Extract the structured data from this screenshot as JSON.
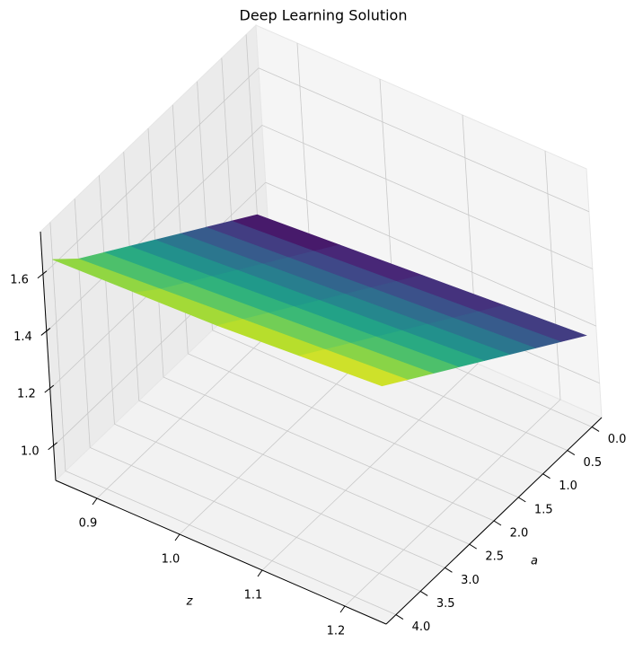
{
  "chart_data": {
    "type": "surface",
    "title": "Deep Learning Solution",
    "xlabel": "a",
    "ylabel": "z",
    "x": [
      0,
      0.5,
      1,
      1.5,
      2,
      2.5,
      3,
      3.5,
      4
    ],
    "y": [
      0.85,
      0.95,
      1.05,
      1.15,
      1.25
    ],
    "values": [
      [
        1.12,
        1.14,
        1.16,
        1.18,
        1.2
      ],
      [
        1.18,
        1.2,
        1.22,
        1.24,
        1.26
      ],
      [
        1.24,
        1.26,
        1.28,
        1.3,
        1.32
      ],
      [
        1.3,
        1.32,
        1.34,
        1.36,
        1.38
      ],
      [
        1.36,
        1.38,
        1.4,
        1.42,
        1.44
      ],
      [
        1.42,
        1.44,
        1.46,
        1.48,
        1.5
      ],
      [
        1.48,
        1.5,
        1.52,
        1.54,
        1.56
      ],
      [
        1.54,
        1.56,
        1.58,
        1.6,
        1.62
      ],
      [
        1.62,
        1.63,
        1.64,
        1.66,
        1.68
      ]
    ],
    "xlim": [
      -0.2,
      4.2
    ],
    "ylim": [
      0.85,
      1.25
    ],
    "zlim": [
      0.88,
      1.75
    ],
    "xticks": [
      {
        "value": 0,
        "label": "0.0"
      },
      0.5,
      {
        "value": 1,
        "label": "1.0"
      },
      1.5,
      {
        "value": 2,
        "label": "2.0"
      },
      2.5,
      {
        "value": 3,
        "label": "3.0"
      },
      3.5,
      {
        "value": 4,
        "label": "4.0"
      }
    ],
    "yticks": [
      0.9,
      {
        "value": 1,
        "label": "1.0"
      },
      1.1,
      1.2
    ],
    "zticks": [
      {
        "value": 1,
        "label": "1.0"
      },
      1.2,
      1.4,
      1.6
    ],
    "colormap": "viridis",
    "grid": true
  }
}
